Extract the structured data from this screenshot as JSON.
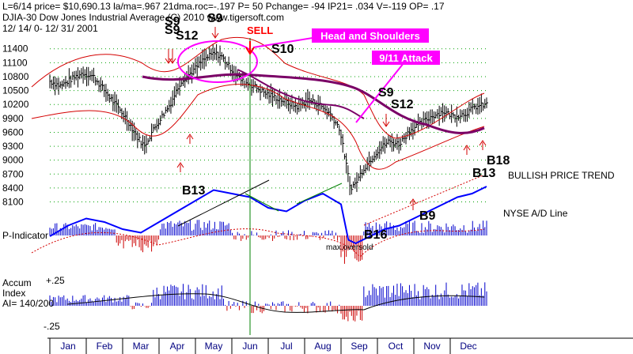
{
  "header": {
    "line1": "L=6/14  price= $10,690.13  la/ma=.967 21dma.roc=-.197 P=  50 Pchange= -94 IP21= .034 V=-119 OP= .17",
    "line2": "DJIA-30  Dow Jones Industrial Average  (C) 2010 www.tigersoft.com",
    "line3": "12/ 14/ 0- 12/ 31/ 2001"
  },
  "panel_labels": {
    "p_indicator": "P-Indicator",
    "accum_1": "Accum",
    "accum_2": "Index",
    "accum_3": "AI= 140/200",
    "accum_top": "+.25",
    "accum_bottom": "-.25",
    "nyse_ad": "NYSE A/D Line",
    "bullish": "BULLISH PRICE TREND",
    "max_oversold": "max.oversold"
  },
  "annotations": {
    "head_shoulders": "Head and Shoulders",
    "attack": "9/11 Attack",
    "sell": "SELL"
  },
  "signals": {
    "s9_a": "S9",
    "s12_a": "S12",
    "s9_b": "S9",
    "s9_c": "S9",
    "s10": "S10",
    "s9_d": "S9",
    "s12_b": "S12",
    "b13_a": "B13",
    "b16": "B16",
    "b9": "B9",
    "b18": "B18",
    "b13_b": "B13"
  },
  "colors": {
    "price_bars": "#000000",
    "ad_line": "#0000ff",
    "ma_red": "#d40000",
    "ma_purple": "#7a0066",
    "magenta": "#ff00ff",
    "positive_bars": "#0000cc",
    "negative_bars": "#cc0000",
    "sell_red": "#ff0000",
    "marker_line": "#008000"
  },
  "chart_data": {
    "type": "line",
    "title": "DJIA-30  Dow Jones Industrial Average",
    "x_axis": {
      "tick_labels": [
        "Jan",
        "Feb",
        "Mar",
        "Apr",
        "May",
        "Jun",
        "Jul",
        "Aug",
        "Sep",
        "Oct",
        "Nov",
        "Dec"
      ]
    },
    "y_axis": {
      "tick_labels": [
        "11400",
        "11100",
        "10800",
        "10500",
        "10200",
        "9900",
        "9600",
        "9300",
        "9000",
        "8700",
        "8400",
        "8100"
      ],
      "ylim": [
        7990,
        11600
      ]
    },
    "grid": true,
    "series": [
      {
        "kind": "price",
        "x": [
          0,
          0.3,
          0.6,
          0.9,
          1.2,
          1.5,
          1.8,
          2.1,
          2.4,
          2.6,
          2.8,
          3.0,
          3.3,
          3.6,
          3.9,
          4.2,
          4.5,
          4.7,
          4.9,
          5.1,
          5.3,
          5.6,
          5.9,
          6.2,
          6.5,
          6.8,
          7.1,
          7.4,
          7.7,
          7.95,
          8.1,
          8.25,
          8.4,
          8.6,
          8.8,
          9.0,
          9.3,
          9.6,
          9.9,
          10.2,
          10.5,
          10.8,
          11.1,
          11.4,
          11.7,
          12.0
        ],
        "y": [
          10700,
          10600,
          10750,
          10880,
          10800,
          10500,
          10200,
          9900,
          9500,
          9300,
          9600,
          9850,
          10200,
          10700,
          10900,
          11150,
          11300,
          11250,
          11050,
          10850,
          10700,
          10600,
          10450,
          10350,
          10250,
          10150,
          10300,
          10200,
          10000,
          9700,
          9100,
          8400,
          8500,
          8800,
          9000,
          9200,
          9400,
          9350,
          9650,
          9800,
          9950,
          10050,
          9950,
          10000,
          10150,
          10200
        ]
      },
      {
        "kind": "ad_line",
        "x": [
          0,
          0.5,
          1.0,
          1.5,
          2.0,
          2.5,
          3.0,
          3.5,
          4.0,
          4.5,
          5.0,
          5.5,
          6.0,
          6.5,
          7.0,
          7.5,
          8.0,
          8.2,
          8.4,
          8.8,
          9.2,
          9.6,
          10.0,
          10.4,
          10.8,
          11.2,
          11.6,
          12.0
        ],
        "y": [
          -10,
          5,
          15,
          10,
          0,
          -5,
          10,
          25,
          40,
          55,
          50,
          45,
          30,
          25,
          40,
          50,
          35,
          -15,
          -20,
          -10,
          0,
          5,
          15,
          25,
          35,
          45,
          50,
          60
        ]
      }
    ]
  }
}
